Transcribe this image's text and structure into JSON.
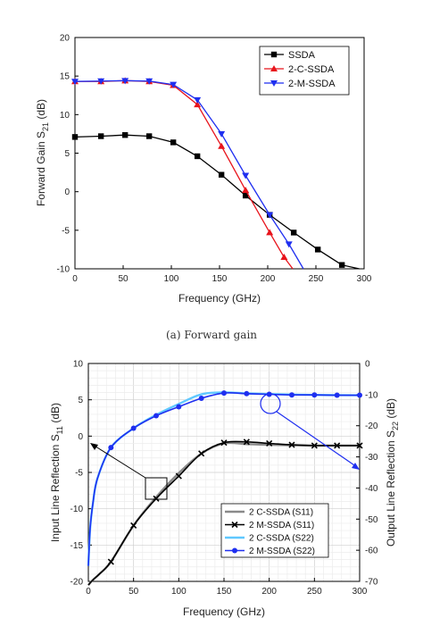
{
  "chart_data": [
    {
      "type": "line",
      "caption": "(a) Forward gain",
      "xlabel": "Frequency (GHz)",
      "ylabel_main": "Forward Gain S",
      "ylabel_sub": "21",
      "ylabel_unit": " (dB)",
      "xlim": [
        0,
        300
      ],
      "ylim": [
        -10,
        20
      ],
      "xticks": [
        "0",
        "50",
        "100",
        "150",
        "200",
        "250",
        "300"
      ],
      "yticks": [
        "-10",
        "-5",
        "0",
        "5",
        "10",
        "15",
        "20"
      ],
      "legend_position": "top-right",
      "series": [
        {
          "name": "SSDA",
          "color": "#000000",
          "marker": "square",
          "x": [
            0,
            27,
            52,
            77,
            102,
            127,
            152,
            177,
            202,
            227,
            252,
            277,
            295
          ],
          "y": [
            7.1,
            7.2,
            7.35,
            7.2,
            6.4,
            4.6,
            2.2,
            -0.5,
            -3.0,
            -5.3,
            -7.5,
            -9.5,
            -10.0
          ]
        },
        {
          "name": "2-C-SSDA",
          "color": "#e8141c",
          "marker": "triangle-up",
          "x": [
            0,
            27,
            52,
            77,
            102,
            127,
            152,
            177,
            202,
            217,
            226
          ],
          "y": [
            14.3,
            14.3,
            14.4,
            14.3,
            13.8,
            11.3,
            5.9,
            0.2,
            -5.3,
            -8.5,
            -10.0
          ]
        },
        {
          "name": "2-M-SSDA",
          "color": "#1f2ff0",
          "marker": "triangle-down",
          "x": [
            0,
            27,
            52,
            77,
            102,
            127,
            152,
            177,
            202,
            222,
            237
          ],
          "y": [
            14.3,
            14.35,
            14.4,
            14.35,
            13.9,
            11.9,
            7.5,
            2.1,
            -3.0,
            -6.8,
            -10.0
          ]
        }
      ]
    },
    {
      "type": "line",
      "xlabel": "Frequency (GHz)",
      "ylabel_left_main": "Input Line Reflection S",
      "ylabel_left_sub": "11",
      "ylabel_left_unit": " (dB)",
      "ylabel_right_main": "Output Line Reflection S",
      "ylabel_right_sub": "22",
      "ylabel_right_unit": " (dB)",
      "xlim": [
        0,
        300
      ],
      "ylim_left": [
        -20,
        10
      ],
      "ylim_right": [
        -70,
        0
      ],
      "xticks": [
        "0",
        "50",
        "100",
        "150",
        "200",
        "250",
        "300"
      ],
      "yticks_left": [
        "-20",
        "-15",
        "-10",
        "-5",
        "0",
        "5",
        "10"
      ],
      "yticks_right": [
        "-70",
        "-60",
        "-50",
        "-40",
        "-30",
        "-20",
        "-10",
        "0"
      ],
      "grid": true,
      "legend_position": "bottom-right",
      "series": [
        {
          "name": "2 C-SSDA (S11)",
          "color": "#8a8a8a",
          "axis": "left",
          "marker": "none",
          "x": [
            0,
            5,
            12,
            25,
            50,
            75,
            100,
            125,
            150,
            175,
            200,
            250,
            300
          ],
          "y": [
            -20.5,
            -19.8,
            -19.0,
            -17.3,
            -12.3,
            -8.4,
            -5.1,
            -2.4,
            -1.0,
            -1.1,
            -1.2,
            -1.3,
            -1.3
          ]
        },
        {
          "name": "2 M-SSDA (S11)",
          "color": "#000000",
          "axis": "left",
          "marker": "x",
          "x": [
            0,
            5,
            12,
            25,
            50,
            75,
            100,
            125,
            150,
            175,
            200,
            225,
            250,
            275,
            300
          ],
          "y": [
            -20.5,
            -19.8,
            -19.0,
            -17.3,
            -12.3,
            -8.6,
            -5.5,
            -2.4,
            -0.9,
            -0.8,
            -1.0,
            -1.2,
            -1.3,
            -1.3,
            -1.3
          ]
        },
        {
          "name": "2 C-SSDA (S22)",
          "color": "#5fc8ff",
          "axis": "right",
          "marker": "none",
          "x": [
            0,
            2,
            5,
            10,
            25,
            50,
            75,
            100,
            125,
            150,
            175,
            200,
            250,
            300
          ],
          "y": [
            -65.0,
            -53.0,
            -45.0,
            -37.0,
            -27.0,
            -20.8,
            -16.5,
            -13.0,
            -9.9,
            -9.3,
            -9.6,
            -9.8,
            -10.1,
            -10.2
          ]
        },
        {
          "name": "2 M-SSDA (S22)",
          "color": "#1f2ff0",
          "axis": "right",
          "marker": "circle",
          "x": [
            0,
            2,
            5,
            10,
            25,
            50,
            75,
            100,
            125,
            150,
            175,
            200,
            225,
            250,
            275,
            300
          ],
          "y": [
            -65.0,
            -53.0,
            -45.0,
            -37.0,
            -27.0,
            -20.8,
            -16.8,
            -13.9,
            -11.2,
            -9.5,
            -9.7,
            -9.9,
            -10.1,
            -10.1,
            -10.2,
            -10.2
          ]
        }
      ]
    }
  ]
}
